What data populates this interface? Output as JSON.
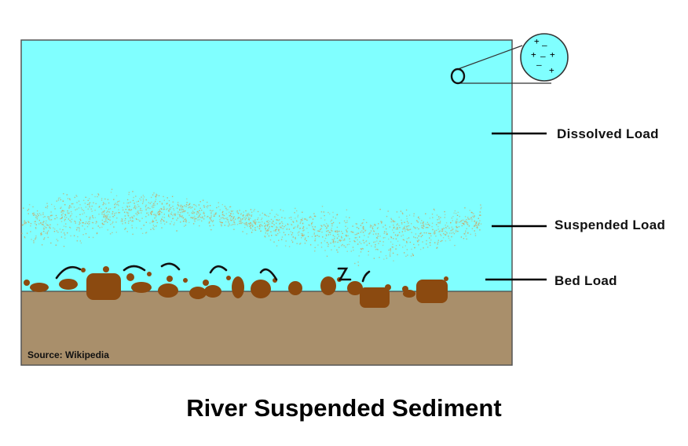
{
  "labels": {
    "dissolved": "Dissolved Load",
    "suspended": "Suspended Load",
    "bed": "Bed Load"
  },
  "source": "Source: Wikipedia",
  "title": "River Suspended Sediment",
  "ions": [
    "+",
    "–",
    "+",
    "–",
    "+",
    "–",
    "+"
  ],
  "colors": {
    "water": "#80ffff",
    "riverbed": "#a98f6b",
    "sediment": "#8b4a10",
    "suspended_particles": "#c8a86a"
  }
}
